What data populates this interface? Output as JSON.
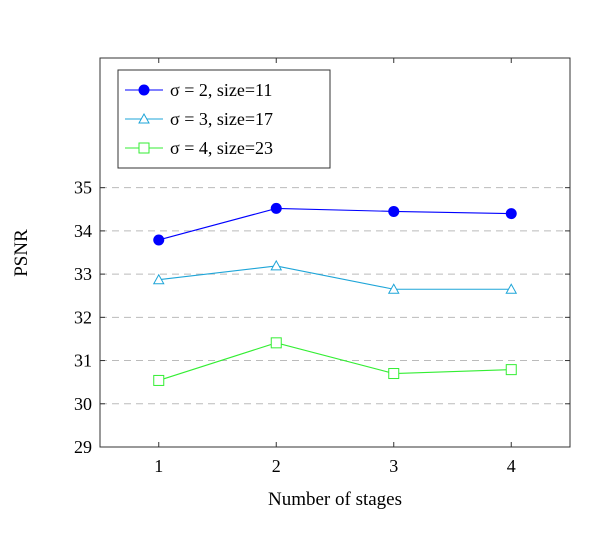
{
  "chart_data": {
    "type": "line",
    "title": "",
    "xlabel": "Number of stages",
    "ylabel": "PSNR",
    "x": [
      1,
      2,
      3,
      4
    ],
    "xticks": [
      "1",
      "2",
      "3",
      "4"
    ],
    "yticks": [
      "29",
      "30",
      "31",
      "32",
      "33",
      "34",
      "35"
    ],
    "xlim": [
      0.5,
      4.5
    ],
    "ylim": [
      29,
      38
    ],
    "grid": "horizontal dashed",
    "legend_position": "top-left",
    "series": [
      {
        "name": "σ = 2, size=11",
        "values": [
          33.79,
          34.52,
          34.45,
          34.4
        ],
        "color": "#0000ff",
        "marker": "filled-circle"
      },
      {
        "name": "σ = 3, size=17",
        "values": [
          32.87,
          33.19,
          32.65,
          32.65
        ],
        "color": "#1ea5d8",
        "marker": "open-triangle"
      },
      {
        "name": "σ = 4, size=23",
        "values": [
          30.54,
          31.41,
          30.7,
          30.79
        ],
        "color": "#33ee33",
        "marker": "open-square"
      }
    ]
  }
}
